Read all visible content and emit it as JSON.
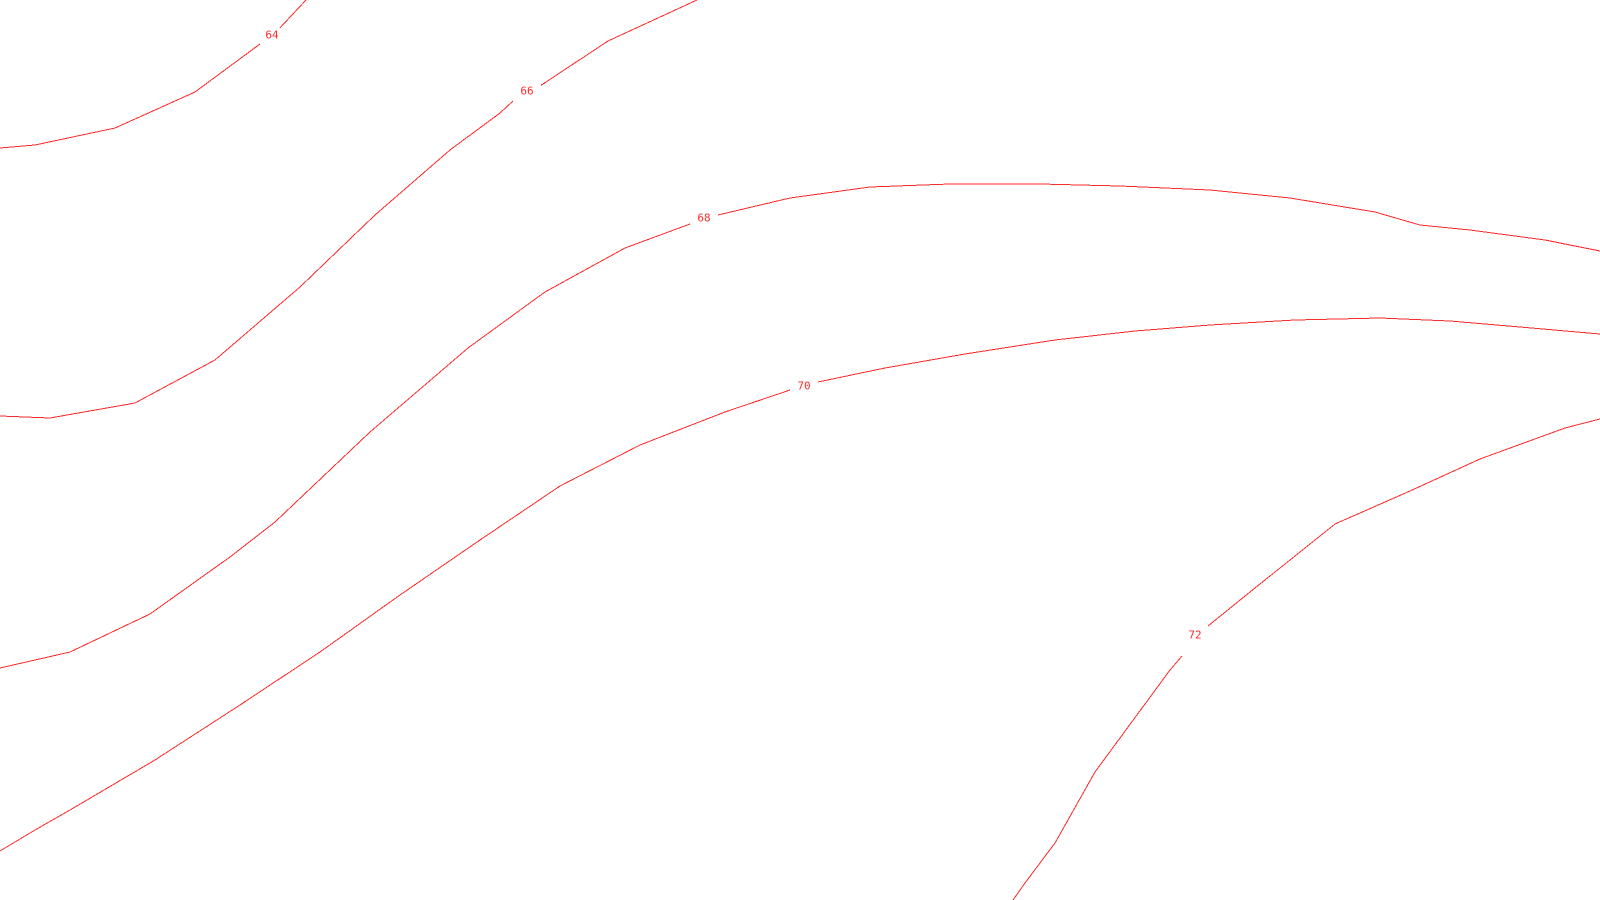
{
  "map": {
    "style": {
      "contour_color": "#ff2a2a",
      "background_color": "#ffffff"
    },
    "contours": [
      {
        "id": "c64",
        "label": "64"
      },
      {
        "id": "c66",
        "label": "66"
      },
      {
        "id": "c68",
        "label": "68"
      },
      {
        "id": "c70",
        "label": "70"
      },
      {
        "id": "c72",
        "label": "72"
      }
    ]
  }
}
